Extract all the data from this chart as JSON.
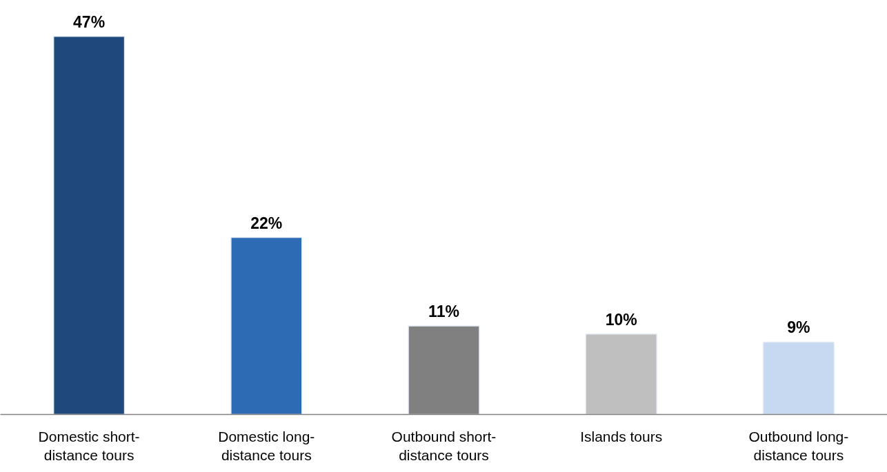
{
  "chart_data": {
    "type": "bar",
    "categories": [
      "Domestic short-distance tours",
      "Domestic long-distance tours",
      "Outbound short-distance tours",
      "Islands tours",
      "Outbound long-distance tours"
    ],
    "values": [
      47,
      22,
      11,
      10,
      9
    ],
    "colors": [
      "#1f497d",
      "#2e6bb5",
      "#808080",
      "#bfbfbf",
      "#c6d9f0"
    ],
    "value_labels": [
      "47%",
      "22%",
      "11%",
      "10%",
      "9%"
    ],
    "grid": false
  }
}
